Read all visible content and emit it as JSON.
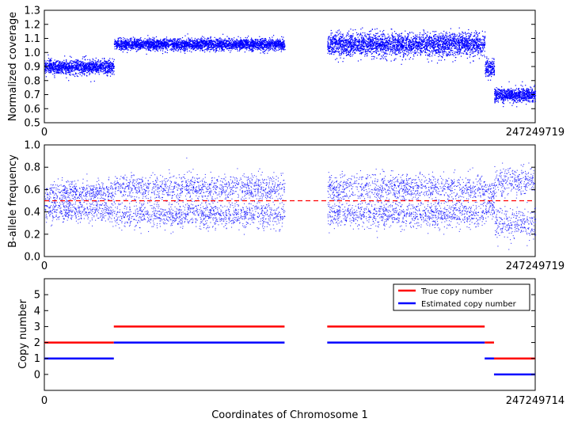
{
  "chart_data": [
    {
      "type": "scatter",
      "ylabel": "Normalized coverage",
      "xlabel": "",
      "xlim": [
        0,
        247249719
      ],
      "ylim": [
        0.5,
        1.3
      ],
      "xticks": [
        "0",
        "247249719"
      ],
      "yticks": [
        "0.5",
        "0.6",
        "0.7",
        "0.8",
        "0.9",
        "1.0",
        "1.1",
        "1.2",
        "1.3"
      ],
      "grid": false,
      "color": "#0000ff",
      "segments": [
        {
          "x_start": 0,
          "x_end": 35000000,
          "mean": 0.9,
          "spread": 0.025
        },
        {
          "x_start": 35000000,
          "x_end": 121000000,
          "mean": 1.06,
          "spread": 0.02
        },
        {
          "x_start": 142500000,
          "x_end": 221800000,
          "mean": 1.06,
          "spread": 0.04
        },
        {
          "x_start": 221800000,
          "x_end": 226500000,
          "mean": 0.89,
          "spread": 0.03
        },
        {
          "x_start": 226500000,
          "x_end": 247249719,
          "mean": 0.7,
          "spread": 0.025
        }
      ]
    },
    {
      "type": "scatter",
      "ylabel": "B-allele frequency",
      "xlabel": "",
      "xlim": [
        0,
        247249719
      ],
      "ylim": [
        0,
        1
      ],
      "xticks": [
        "0",
        "247249719"
      ],
      "yticks": [
        "0.0",
        "0.2",
        "0.4",
        "0.6",
        "0.8",
        "1.0"
      ],
      "grid": false,
      "reference_line": {
        "y": 0.5,
        "color": "#ff0000",
        "style": "dashed"
      },
      "color": "#0000ff",
      "segments": [
        {
          "x_start": 0,
          "x_end": 35000000,
          "low": 0.42,
          "high": 0.58,
          "spread": 0.05
        },
        {
          "x_start": 35000000,
          "x_end": 121000000,
          "low": 0.38,
          "high": 0.62,
          "spread": 0.06
        },
        {
          "x_start": 142500000,
          "x_end": 221800000,
          "low": 0.38,
          "high": 0.62,
          "spread": 0.06
        },
        {
          "x_start": 221800000,
          "x_end": 226500000,
          "low": 0.42,
          "high": 0.58,
          "spread": 0.05
        },
        {
          "x_start": 226500000,
          "x_end": 247249719,
          "low": 0.3,
          "high": 0.68,
          "spread": 0.07
        }
      ]
    },
    {
      "type": "line",
      "ylabel": "Copy number",
      "xlabel": "Coordinates of Chromosome 1",
      "xlim": [
        0,
        247249714
      ],
      "ylim": [
        -1,
        6
      ],
      "xticks": [
        "0",
        "247249714"
      ],
      "yticks": [
        "0",
        "1",
        "2",
        "3",
        "4",
        "5"
      ],
      "grid": false,
      "legend": "top-right",
      "series": [
        {
          "name": "True copy number",
          "color": "#ff0000",
          "segments": [
            {
              "x_start": 0,
              "x_end": 35000000,
              "value": 2
            },
            {
              "x_start": 35000000,
              "x_end": 121000000,
              "value": 3
            },
            {
              "x_start": 142500000,
              "x_end": 221800000,
              "value": 3
            },
            {
              "x_start": 221800000,
              "x_end": 226500000,
              "value": 2
            },
            {
              "x_start": 226500000,
              "x_end": 247249714,
              "value": 1
            }
          ]
        },
        {
          "name": "Estimated copy number",
          "color": "#0000ff",
          "segments": [
            {
              "x_start": 0,
              "x_end": 35000000,
              "value": 1
            },
            {
              "x_start": 35000000,
              "x_end": 121000000,
              "value": 2
            },
            {
              "x_start": 142500000,
              "x_end": 221800000,
              "value": 2
            },
            {
              "x_start": 221800000,
              "x_end": 226500000,
              "value": 1
            },
            {
              "x_start": 226500000,
              "x_end": 247249714,
              "value": 0
            }
          ]
        }
      ]
    }
  ]
}
